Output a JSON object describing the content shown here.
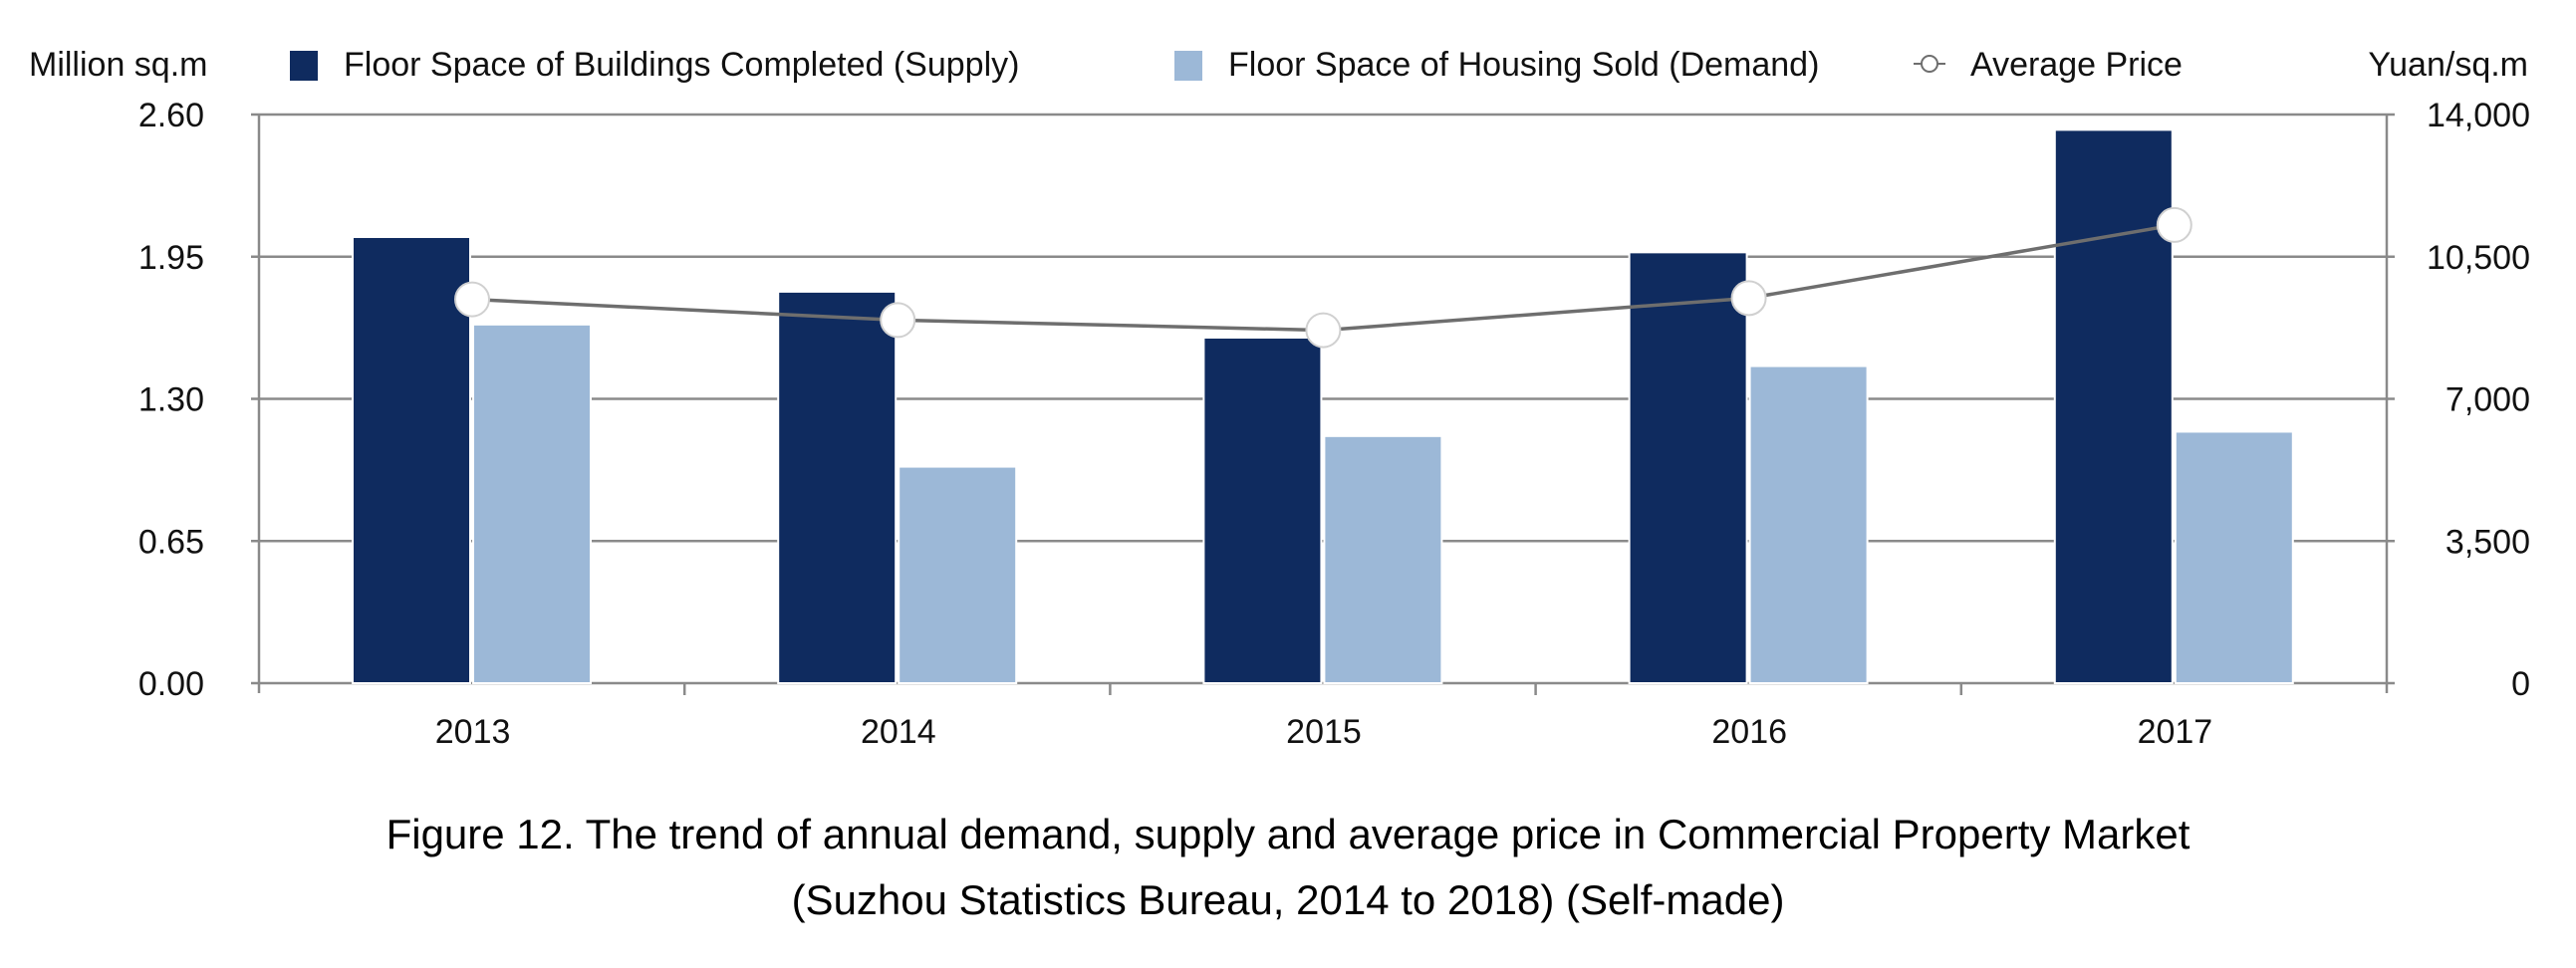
{
  "chart_data": {
    "type": "bar+line",
    "categories": [
      "2013",
      "2014",
      "2015",
      "2016",
      "2017"
    ],
    "series": [
      {
        "name": "Floor Space of Buildings Completed (Supply)",
        "type": "bar",
        "axis": "left",
        "color": "#0f2b5f",
        "values": [
          2.04,
          1.79,
          1.58,
          1.97,
          2.53
        ]
      },
      {
        "name": "Floor Space of Housing Sold (Demand)",
        "type": "bar",
        "axis": "left",
        "color": "#9cb8d7",
        "values": [
          1.64,
          0.99,
          1.13,
          1.45,
          1.15
        ]
      },
      {
        "name": "Average Price",
        "type": "line",
        "axis": "right",
        "color": "#6e6e6e",
        "values": [
          9450,
          8940,
          8690,
          9480,
          11280
        ]
      }
    ],
    "y_left": {
      "label": "Million sq.m",
      "ylim": [
        0,
        2.6
      ],
      "ticks": [
        "0.00",
        "0.65",
        "1.30",
        "1.95",
        "2.60"
      ]
    },
    "y_right": {
      "label": "Yuan/sq.m",
      "ylim": [
        0,
        14000
      ],
      "ticks": [
        "0",
        "3,500",
        "7,000",
        "10,500",
        "14,000"
      ]
    },
    "grid": true,
    "legend": "top"
  },
  "caption": {
    "line1": "Figure 12. The trend of annual demand, supply and average price in Commercial Property Market",
    "line2": "(Suzhou Statistics Bureau, 2014 to 2018) (Self-made)"
  }
}
